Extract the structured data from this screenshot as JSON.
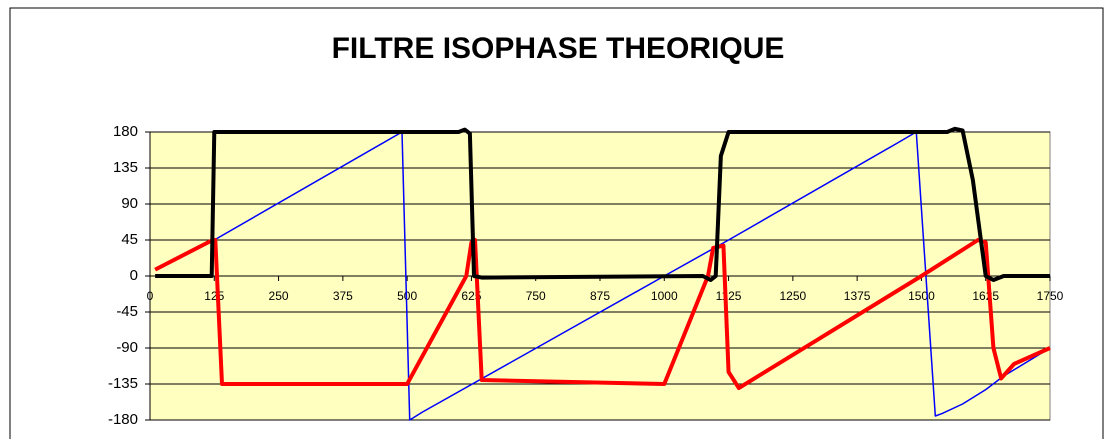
{
  "chart_data": {
    "type": "line",
    "title": "FILTRE ISOPHASE THEORIQUE",
    "xlim": [
      0,
      1750
    ],
    "xticks": [
      0,
      125,
      250,
      375,
      500,
      625,
      750,
      875,
      1000,
      1125,
      1250,
      1375,
      1500,
      1625,
      1750
    ],
    "ylim": [
      -180,
      180
    ],
    "yticks": [
      -180,
      -135,
      -90,
      -45,
      0,
      45,
      90,
      135,
      180
    ],
    "grid": true,
    "series": [
      {
        "color": "#0000ff",
        "width": 1.5,
        "x": [
          125,
          490,
          505,
          530,
          1000,
          1125,
          1450,
          1490,
          1527,
          1540,
          1580,
          1625,
          1660,
          1750
        ],
        "values": [
          45,
          180,
          -180,
          -170,
          0,
          45,
          165,
          180,
          -175,
          -172,
          -160,
          -142,
          -125,
          -90
        ]
      },
      {
        "color": "#ff0000",
        "width": 4,
        "x": [
          10,
          122,
          127,
          140,
          500,
          615,
          625,
          632,
          645,
          1000,
          1085,
          1095,
          1115,
          1125,
          1145,
          1500,
          1610,
          1625,
          1640,
          1655,
          1680,
          1750
        ],
        "values": [
          8,
          45,
          45,
          -135,
          -135,
          0,
          42,
          45,
          -130,
          -135,
          0,
          35,
          38,
          -120,
          -140,
          0,
          45,
          42,
          -90,
          -128,
          -110,
          -90
        ]
      },
      {
        "color": "#000000",
        "width": 4,
        "x": [
          10,
          120,
          125,
          130,
          600,
          612,
          622,
          630,
          645,
          1075,
          1090,
          1100,
          1110,
          1125,
          1140,
          1550,
          1565,
          1580,
          1600,
          1625,
          1640,
          1660,
          1750
        ],
        "values": [
          0,
          0,
          180,
          180,
          180,
          183,
          178,
          0,
          -2,
          0,
          -5,
          0,
          150,
          180,
          180,
          180,
          184,
          182,
          120,
          0,
          -5,
          0,
          0
        ]
      }
    ]
  }
}
